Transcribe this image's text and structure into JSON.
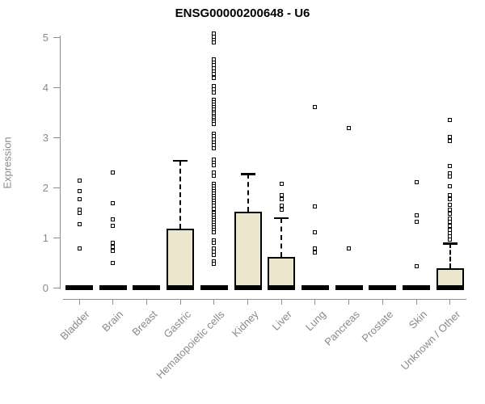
{
  "chart_data": {
    "type": "boxplot",
    "title": "ENSG00000200648 - U6",
    "xlabel": "",
    "ylabel": "Expression",
    "ylim": [
      0,
      5
    ],
    "y_ticks": [
      0,
      1,
      2,
      3,
      4,
      5
    ],
    "grid": false,
    "legend": "none",
    "categories": [
      "Bladder",
      "Brain",
      "Breast",
      "Gastric",
      "Hematopoietic cells",
      "Kidney",
      "Liver",
      "Lung",
      "Pancreas",
      "Prostate",
      "Skin",
      "Unknown / Other"
    ],
    "series": [
      {
        "name": "Bladder",
        "median": 0,
        "q1": 0,
        "q3": 0,
        "whisker_low": 0,
        "whisker_high": 0,
        "outliers": [
          2.14,
          1.93,
          1.77,
          1.55,
          1.5,
          1.26,
          0.79
        ]
      },
      {
        "name": "Brain",
        "median": 0,
        "q1": 0,
        "q3": 0,
        "whisker_low": 0,
        "whisker_high": 0,
        "outliers": [
          2.3,
          1.68,
          1.36,
          1.24,
          0.9,
          0.82,
          0.74,
          0.5
        ]
      },
      {
        "name": "Breast",
        "median": 0,
        "q1": 0,
        "q3": 0,
        "whisker_low": 0,
        "whisker_high": 0,
        "outliers": []
      },
      {
        "name": "Gastric",
        "median": 0,
        "q1": 0,
        "q3": 1.17,
        "whisker_low": 0,
        "whisker_high": 2.54,
        "outliers": []
      },
      {
        "name": "Hematopoietic cells",
        "median": 0,
        "q1": 0,
        "q3": 0,
        "whisker_low": 0,
        "whisker_high": 0,
        "outliers": [
          5.07,
          5.01,
          4.95,
          4.89,
          4.56,
          4.5,
          4.44,
          4.38,
          4.32,
          4.26,
          4.18,
          4.02,
          3.96,
          3.9,
          3.75,
          3.7,
          3.65,
          3.6,
          3.55,
          3.51,
          3.47,
          3.43,
          3.39,
          3.35,
          3.31,
          3.27,
          3.08,
          3.02,
          2.96,
          2.9,
          2.84,
          2.78,
          2.56,
          2.5,
          2.44,
          2.3,
          2.24,
          2.08,
          2.03,
          1.98,
          1.93,
          1.88,
          1.83,
          1.78,
          1.73,
          1.68,
          1.63,
          1.58,
          1.5,
          1.45,
          1.4,
          1.35,
          1.3,
          1.25,
          1.2,
          1.15,
          1.1,
          0.95,
          0.89,
          0.79,
          0.72,
          0.65,
          0.53,
          0.47
        ]
      },
      {
        "name": "Kidney",
        "median": 0,
        "q1": 0,
        "q3": 1.52,
        "whisker_low": 0,
        "whisker_high": 2.27,
        "outliers": []
      },
      {
        "name": "Liver",
        "median": 0,
        "q1": 0,
        "q3": 0.61,
        "whisker_low": 0,
        "whisker_high": 1.39,
        "outliers": [
          2.07,
          1.84,
          1.77,
          1.64,
          1.56
        ]
      },
      {
        "name": "Lung",
        "median": 0,
        "q1": 0,
        "q3": 0,
        "whisker_low": 0,
        "whisker_high": 0,
        "outliers": [
          3.61,
          1.62,
          1.1,
          0.79,
          0.7
        ]
      },
      {
        "name": "Pancreas",
        "median": 0,
        "q1": 0,
        "q3": 0,
        "whisker_low": 0,
        "whisker_high": 0,
        "outliers": [
          3.19,
          0.78
        ]
      },
      {
        "name": "Prostate",
        "median": 0,
        "q1": 0,
        "q3": 0,
        "whisker_low": 0,
        "whisker_high": 0,
        "outliers": []
      },
      {
        "name": "Skin",
        "median": 0,
        "q1": 0,
        "q3": 0,
        "whisker_low": 0,
        "whisker_high": 0,
        "outliers": [
          2.1,
          1.44,
          1.31,
          0.42
        ]
      },
      {
        "name": "Unknown / Other",
        "median": 0,
        "q1": 0,
        "q3": 0.38,
        "whisker_low": 0,
        "whisker_high": 0.88,
        "outliers": [
          3.34,
          3.01,
          2.93,
          2.42,
          2.29,
          2.22,
          2.03,
          1.84,
          1.76,
          1.65,
          1.56,
          1.47,
          1.38,
          1.31,
          1.23,
          1.16,
          1.09,
          1.02,
          0.96
        ]
      }
    ],
    "colors": {
      "box_fill": "#ece6cc",
      "box_border": "#000000",
      "median": "#000000",
      "outlier": "#000000",
      "axis": "#8f8f8f",
      "tick_text": "#8a8a8a",
      "title_text": "#000000"
    }
  }
}
